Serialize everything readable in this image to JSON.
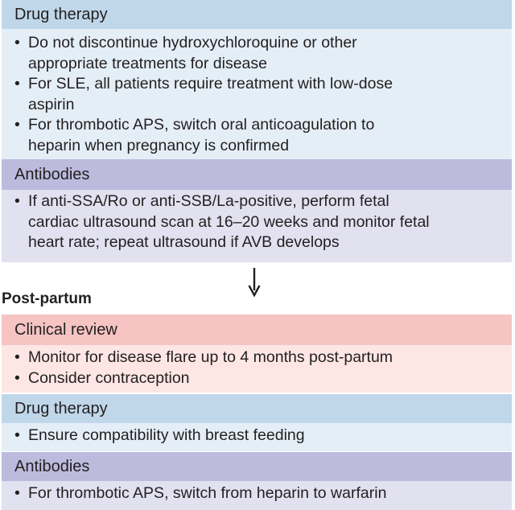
{
  "sections": {
    "drug_therapy_1": {
      "header": "Drug therapy",
      "items": [
        [
          "Do not discontinue hydroxychloroquine or other",
          "appropriate treatments for disease"
        ],
        [
          "For SLE, all patients require treatment with low-dose",
          "aspirin"
        ],
        [
          "For thrombotic APS, switch oral anticoagulation to",
          "heparin when pregnancy is confirmed"
        ]
      ]
    },
    "antibodies_1": {
      "header": "Antibodies",
      "items": [
        [
          "If anti-SSA/Ro or anti-SSB/La-positive, perform fetal",
          "cardiac ultrasound scan at 16–20 weeks and monitor fetal",
          "heart rate; repeat ultrasound if AVB develops"
        ]
      ]
    },
    "post_partum_title": "Post-partum",
    "clinical_review": {
      "header": "Clinical review",
      "items": [
        [
          "Monitor for disease flare up to 4 months post-partum"
        ],
        [
          "Consider contraception"
        ]
      ]
    },
    "drug_therapy_2": {
      "header": "Drug therapy",
      "items": [
        [
          "Ensure compatibility with breast feeding"
        ]
      ]
    },
    "antibodies_2": {
      "header": "Antibodies",
      "items": [
        [
          "For thrombotic APS, switch from heparin to warfarin"
        ]
      ]
    }
  },
  "bullet_glyph": "•",
  "colors": {
    "blue_header": "#c0d7ea",
    "blue_body": "#e4eef7",
    "purple_header": "#bdbbdd",
    "purple_body": "#e2e1f0",
    "red_header": "#f5c4c3",
    "red_body": "#fde6e4",
    "text": "#231f20"
  }
}
